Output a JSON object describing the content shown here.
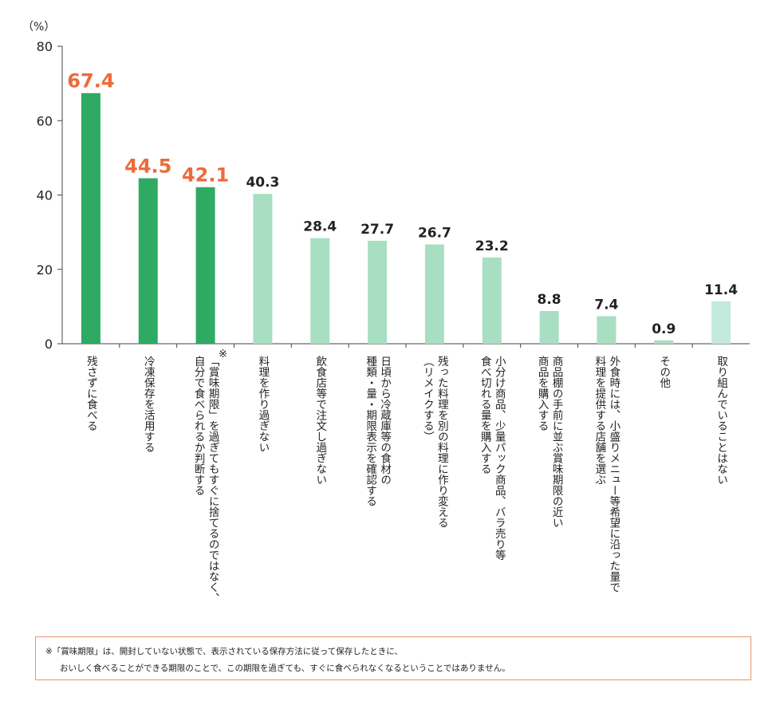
{
  "chart_data": {
    "type": "bar",
    "unit_label": "（%）",
    "ylim": [
      0,
      80
    ],
    "yticks": [
      "0",
      "20",
      "40",
      "60",
      "80"
    ],
    "categories": [
      [
        "残さずに食べる"
      ],
      [
        "冷凍保存を活用する"
      ],
      [
        "「賞味期限」を過ぎてもすぐに捨てるのではなく、",
        "自分で食べられるか判断する"
      ],
      [
        "料理を作り過ぎない"
      ],
      [
        "飲食店等で注文し過ぎない"
      ],
      [
        "日頃から冷蔵庫等の食材の",
        "種類・量・期限表示を確認する"
      ],
      [
        "残った料理を別の料理に作り変える",
        "（リメイクする）"
      ],
      [
        "小分け商品、少量パック商品、バラ売り等",
        "食べ切れる量を購入する"
      ],
      [
        "商品棚の手前に並ぶ賞味期限の近い",
        "商品を購入する"
      ],
      [
        "外食時には、小盛りメニュー等希望に沿った量で",
        "料理を提供する店舗を選ぶ"
      ],
      [
        "その他"
      ],
      [
        "取り組んでいることはない"
      ]
    ],
    "category_marks": [
      "",
      "",
      "※",
      "",
      "",
      "",
      "",
      "",
      "",
      "",
      "",
      ""
    ],
    "values": [
      67.4,
      44.5,
      42.1,
      40.3,
      28.4,
      27.7,
      26.7,
      23.2,
      8.8,
      7.4,
      0.9,
      11.4
    ],
    "value_labels": [
      "67.4",
      "44.5",
      "42.1",
      "40.3",
      "28.4",
      "27.7",
      "26.7",
      "23.2",
      "8.8",
      "7.4",
      "0.9",
      "11.4"
    ],
    "bar_colors": [
      "#2eaa62",
      "#2eaa62",
      "#2eaa62",
      "#a8dfc2",
      "#a8dfc2",
      "#a8dfc2",
      "#a8dfc2",
      "#a8dfc2",
      "#a8dfc2",
      "#a8dfc2",
      "#a8dfc2",
      "#c4eadb"
    ],
    "label_colors": [
      "#ee6a3a",
      "#ee6a3a",
      "#ee6a3a",
      "#222222",
      "#222222",
      "#222222",
      "#222222",
      "#222222",
      "#222222",
      "#222222",
      "#222222",
      "#222222"
    ],
    "highlight_count": 3,
    "grid": false
  },
  "note": {
    "line1": "※「賞味期限」は、開封していない状態で、表示されている保存方法に従って保存したときに、",
    "line2": "おいしく食べることができる期限のことで、この期限を過ぎても、すぐに食べられなくなるということではありません。",
    "border_color": "#e8956e"
  }
}
